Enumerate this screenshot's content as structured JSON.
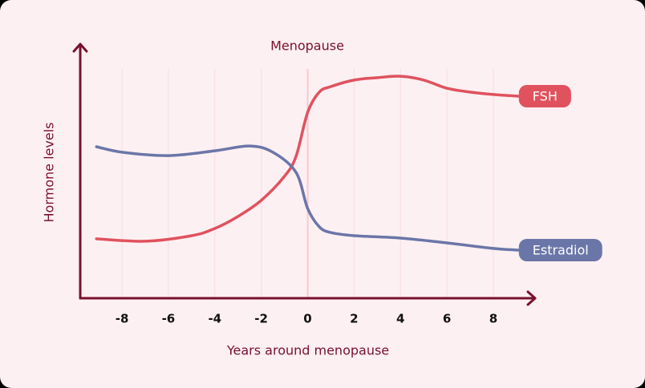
{
  "chart_data": {
    "type": "line",
    "annotation": "Menopause",
    "ylabel": "Hormone levels",
    "xlabel": "Years around menopause",
    "xlim": [
      -9.8,
      9.8
    ],
    "xticks": [
      -8,
      -6,
      -4,
      -2,
      0,
      2,
      4,
      6,
      8
    ],
    "ylim": [
      0,
      100
    ],
    "grid": true,
    "series": [
      {
        "name": "FSH",
        "color": "#e0525e",
        "x": [
          -9.1,
          -7,
          -5,
          -4,
          -3,
          -2,
          -1,
          -0.5,
          0,
          0.5,
          1,
          2,
          3,
          4,
          5,
          6,
          7,
          8,
          9.1
        ],
        "values": [
          24.7,
          23.7,
          26,
          29,
          34,
          40.7,
          50.7,
          59,
          77.3,
          85.7,
          88,
          90.7,
          91.7,
          92.3,
          90.7,
          87.3,
          85.7,
          84.7,
          84
        ]
      },
      {
        "name": "Estradiol",
        "color": "#6b76a8",
        "x": [
          -9.1,
          -8,
          -6,
          -4,
          -2.5,
          -1.5,
          -0.5,
          0,
          0.5,
          1,
          2,
          4,
          6,
          8,
          9.1
        ],
        "values": [
          63,
          60.7,
          59.3,
          61.3,
          63.3,
          60.7,
          52.3,
          37.3,
          29.7,
          27.3,
          26,
          25,
          23,
          20.7,
          20
        ]
      }
    ]
  }
}
